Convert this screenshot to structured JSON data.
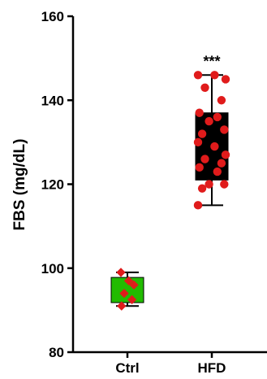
{
  "chart_data": {
    "type": "box",
    "title": "",
    "xlabel": "",
    "ylabel": "FBS (mg/dL)",
    "ylim": [
      80,
      160
    ],
    "yticks": [
      80,
      100,
      120,
      140,
      160
    ],
    "yticks_labels": [
      "80",
      "100",
      "120",
      "140",
      "160"
    ],
    "grid": false,
    "categories": [
      "Ctrl",
      "HFD"
    ],
    "series": [
      {
        "category": "Ctrl",
        "box_color": "#22bb00",
        "whisker_min": 91,
        "q1": 91.8,
        "q3": 97.8,
        "whisker_max": 99,
        "points": [
          99,
          97,
          96,
          94,
          92.5,
          91
        ]
      },
      {
        "category": "HFD",
        "box_color": "#000000",
        "whisker_min": 115,
        "q1": 121,
        "q3": 137,
        "whisker_max": 146,
        "points": [
          146,
          146,
          145,
          143,
          140,
          137,
          136,
          135,
          133,
          132,
          130,
          129,
          127,
          126,
          125,
          124,
          123,
          120,
          120,
          119,
          115
        ]
      }
    ],
    "annotations": [
      {
        "category": "HFD",
        "text": "***"
      }
    ],
    "point_color": "#e01b1b"
  }
}
